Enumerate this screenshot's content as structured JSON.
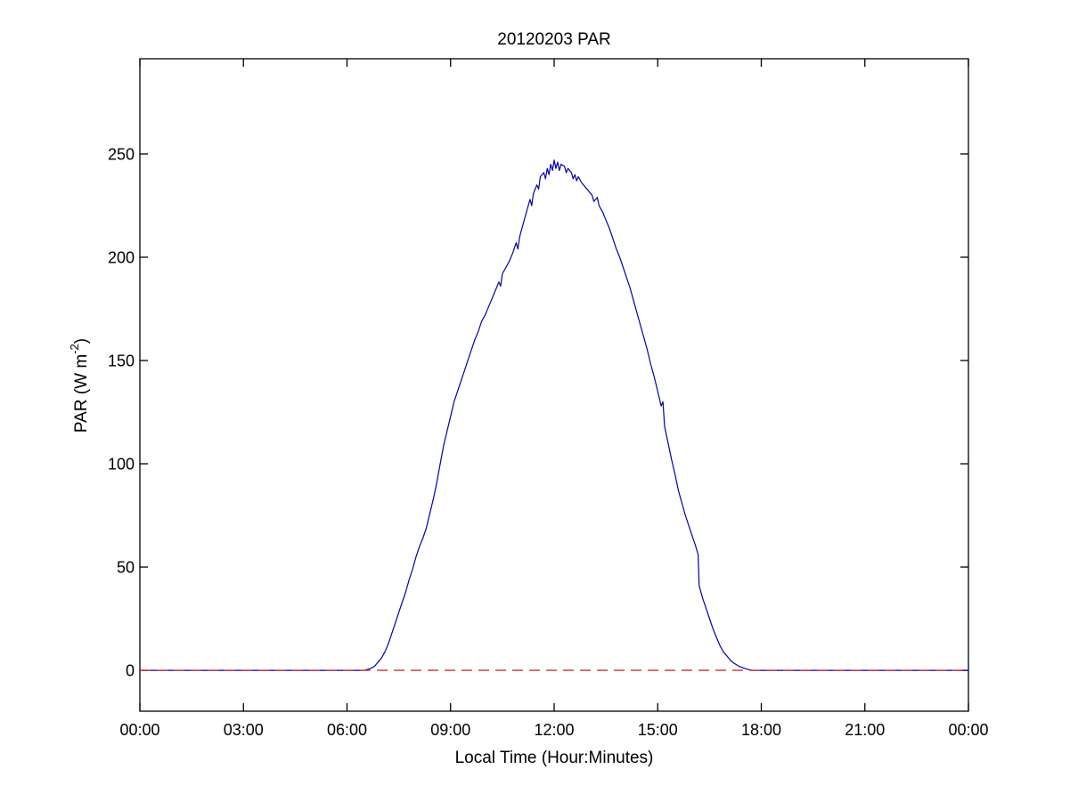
{
  "figure": {
    "background": "#ffffff",
    "title": "20120203 PAR",
    "xlabel": "Local Time (Hour:Minutes)",
    "ylabel_main": "PAR (W m",
    "ylabel_sup": "-2",
    "ylabel_close": ")"
  },
  "chart_data": {
    "type": "line",
    "title": "20120203 PAR",
    "xlabel": "Local Time (Hour:Minutes)",
    "ylabel": "PAR (W m^-2)",
    "grid": false,
    "legend_position": "none",
    "axis_color": "#000000",
    "xlim": [
      0,
      24
    ],
    "ylim": [
      -19.8,
      296.1
    ],
    "xtick_values": [
      0,
      3,
      6,
      9,
      12,
      15,
      18,
      21,
      24
    ],
    "xtick_labels": [
      "00:00",
      "03:00",
      "06:00",
      "09:00",
      "12:00",
      "15:00",
      "18:00",
      "21:00",
      "00:00"
    ],
    "ytick_values": [
      0,
      50,
      100,
      150,
      200,
      250
    ],
    "ytick_labels": [
      "0",
      "50",
      "100",
      "150",
      "200",
      "250"
    ],
    "series": [
      {
        "name": "PAR",
        "color": "#0000ad",
        "style": "solid",
        "points": [
          [
            0,
            0
          ],
          [
            1,
            0
          ],
          [
            2,
            0
          ],
          [
            3,
            0
          ],
          [
            4,
            0
          ],
          [
            5,
            0
          ],
          [
            6,
            0
          ],
          [
            6.5,
            0
          ],
          [
            6.6,
            0.5
          ],
          [
            6.7,
            1
          ],
          [
            6.8,
            2
          ],
          [
            6.9,
            4
          ],
          [
            7.0,
            6
          ],
          [
            7.1,
            9
          ],
          [
            7.2,
            13
          ],
          [
            7.3,
            18
          ],
          [
            7.4,
            23
          ],
          [
            7.5,
            28
          ],
          [
            7.6,
            33
          ],
          [
            7.7,
            38
          ],
          [
            7.8,
            44
          ],
          [
            7.9,
            49
          ],
          [
            8.0,
            55
          ],
          [
            8.1,
            60
          ],
          [
            8.2,
            64
          ],
          [
            8.3,
            69
          ],
          [
            8.4,
            76
          ],
          [
            8.5,
            83
          ],
          [
            8.6,
            91
          ],
          [
            8.7,
            100
          ],
          [
            8.8,
            109
          ],
          [
            8.9,
            116
          ],
          [
            9.0,
            123
          ],
          [
            9.1,
            130
          ],
          [
            9.2,
            135
          ],
          [
            9.3,
            140
          ],
          [
            9.4,
            145
          ],
          [
            9.5,
            150
          ],
          [
            9.6,
            155
          ],
          [
            9.7,
            160
          ],
          [
            9.8,
            164
          ],
          [
            9.9,
            169
          ],
          [
            10.0,
            172
          ],
          [
            10.1,
            176
          ],
          [
            10.2,
            180
          ],
          [
            10.3,
            184
          ],
          [
            10.4,
            188
          ],
          [
            10.45,
            186
          ],
          [
            10.5,
            192
          ],
          [
            10.6,
            195
          ],
          [
            10.7,
            198
          ],
          [
            10.8,
            202
          ],
          [
            10.9,
            207
          ],
          [
            10.95,
            204
          ],
          [
            11.0,
            210
          ],
          [
            11.1,
            216
          ],
          [
            11.2,
            222
          ],
          [
            11.3,
            228
          ],
          [
            11.35,
            225
          ],
          [
            11.4,
            231
          ],
          [
            11.5,
            235
          ],
          [
            11.55,
            233
          ],
          [
            11.6,
            239
          ],
          [
            11.7,
            241
          ],
          [
            11.75,
            238
          ],
          [
            11.8,
            243
          ],
          [
            11.85,
            240
          ],
          [
            11.9,
            245
          ],
          [
            11.95,
            242
          ],
          [
            12.0,
            247
          ],
          [
            12.05,
            243
          ],
          [
            12.1,
            246
          ],
          [
            12.15,
            242
          ],
          [
            12.2,
            245
          ],
          [
            12.3,
            244
          ],
          [
            12.35,
            241
          ],
          [
            12.4,
            243
          ],
          [
            12.5,
            241
          ],
          [
            12.55,
            238
          ],
          [
            12.6,
            240
          ],
          [
            12.65,
            237
          ],
          [
            12.7,
            239
          ],
          [
            12.8,
            236
          ],
          [
            12.9,
            234
          ],
          [
            13.0,
            232
          ],
          [
            13.1,
            230
          ],
          [
            13.15,
            227
          ],
          [
            13.25,
            229
          ],
          [
            13.3,
            225
          ],
          [
            13.4,
            222
          ],
          [
            13.5,
            218
          ],
          [
            13.6,
            214
          ],
          [
            13.7,
            209
          ],
          [
            13.8,
            204
          ],
          [
            13.9,
            200
          ],
          [
            14.0,
            195
          ],
          [
            14.1,
            190
          ],
          [
            14.2,
            185
          ],
          [
            14.3,
            179
          ],
          [
            14.4,
            173
          ],
          [
            14.5,
            167
          ],
          [
            14.6,
            161
          ],
          [
            14.7,
            155
          ],
          [
            14.8,
            148
          ],
          [
            14.9,
            142
          ],
          [
            15.0,
            135
          ],
          [
            15.1,
            128
          ],
          [
            15.15,
            130
          ],
          [
            15.2,
            118
          ],
          [
            15.3,
            110
          ],
          [
            15.4,
            102
          ],
          [
            15.5,
            95
          ],
          [
            15.6,
            87
          ],
          [
            15.7,
            81
          ],
          [
            15.8,
            75
          ],
          [
            15.9,
            70
          ],
          [
            16.0,
            65
          ],
          [
            16.1,
            60
          ],
          [
            16.17,
            56
          ],
          [
            16.2,
            41
          ],
          [
            16.3,
            35
          ],
          [
            16.4,
            30
          ],
          [
            16.5,
            25
          ],
          [
            16.6,
            20
          ],
          [
            16.7,
            16
          ],
          [
            16.8,
            12
          ],
          [
            16.9,
            9
          ],
          [
            17.0,
            7
          ],
          [
            17.1,
            5
          ],
          [
            17.2,
            3.5
          ],
          [
            17.35,
            2
          ],
          [
            17.5,
            1
          ],
          [
            17.65,
            0.3
          ],
          [
            17.75,
            0
          ],
          [
            18,
            0
          ],
          [
            19,
            0
          ],
          [
            20,
            0
          ],
          [
            21,
            0
          ],
          [
            22,
            0
          ],
          [
            23,
            0
          ],
          [
            24,
            0
          ]
        ]
      },
      {
        "name": "zero-reference",
        "color": "#cc3333",
        "style": "dashed",
        "points": [
          [
            0,
            0
          ],
          [
            24,
            0
          ]
        ]
      }
    ]
  }
}
